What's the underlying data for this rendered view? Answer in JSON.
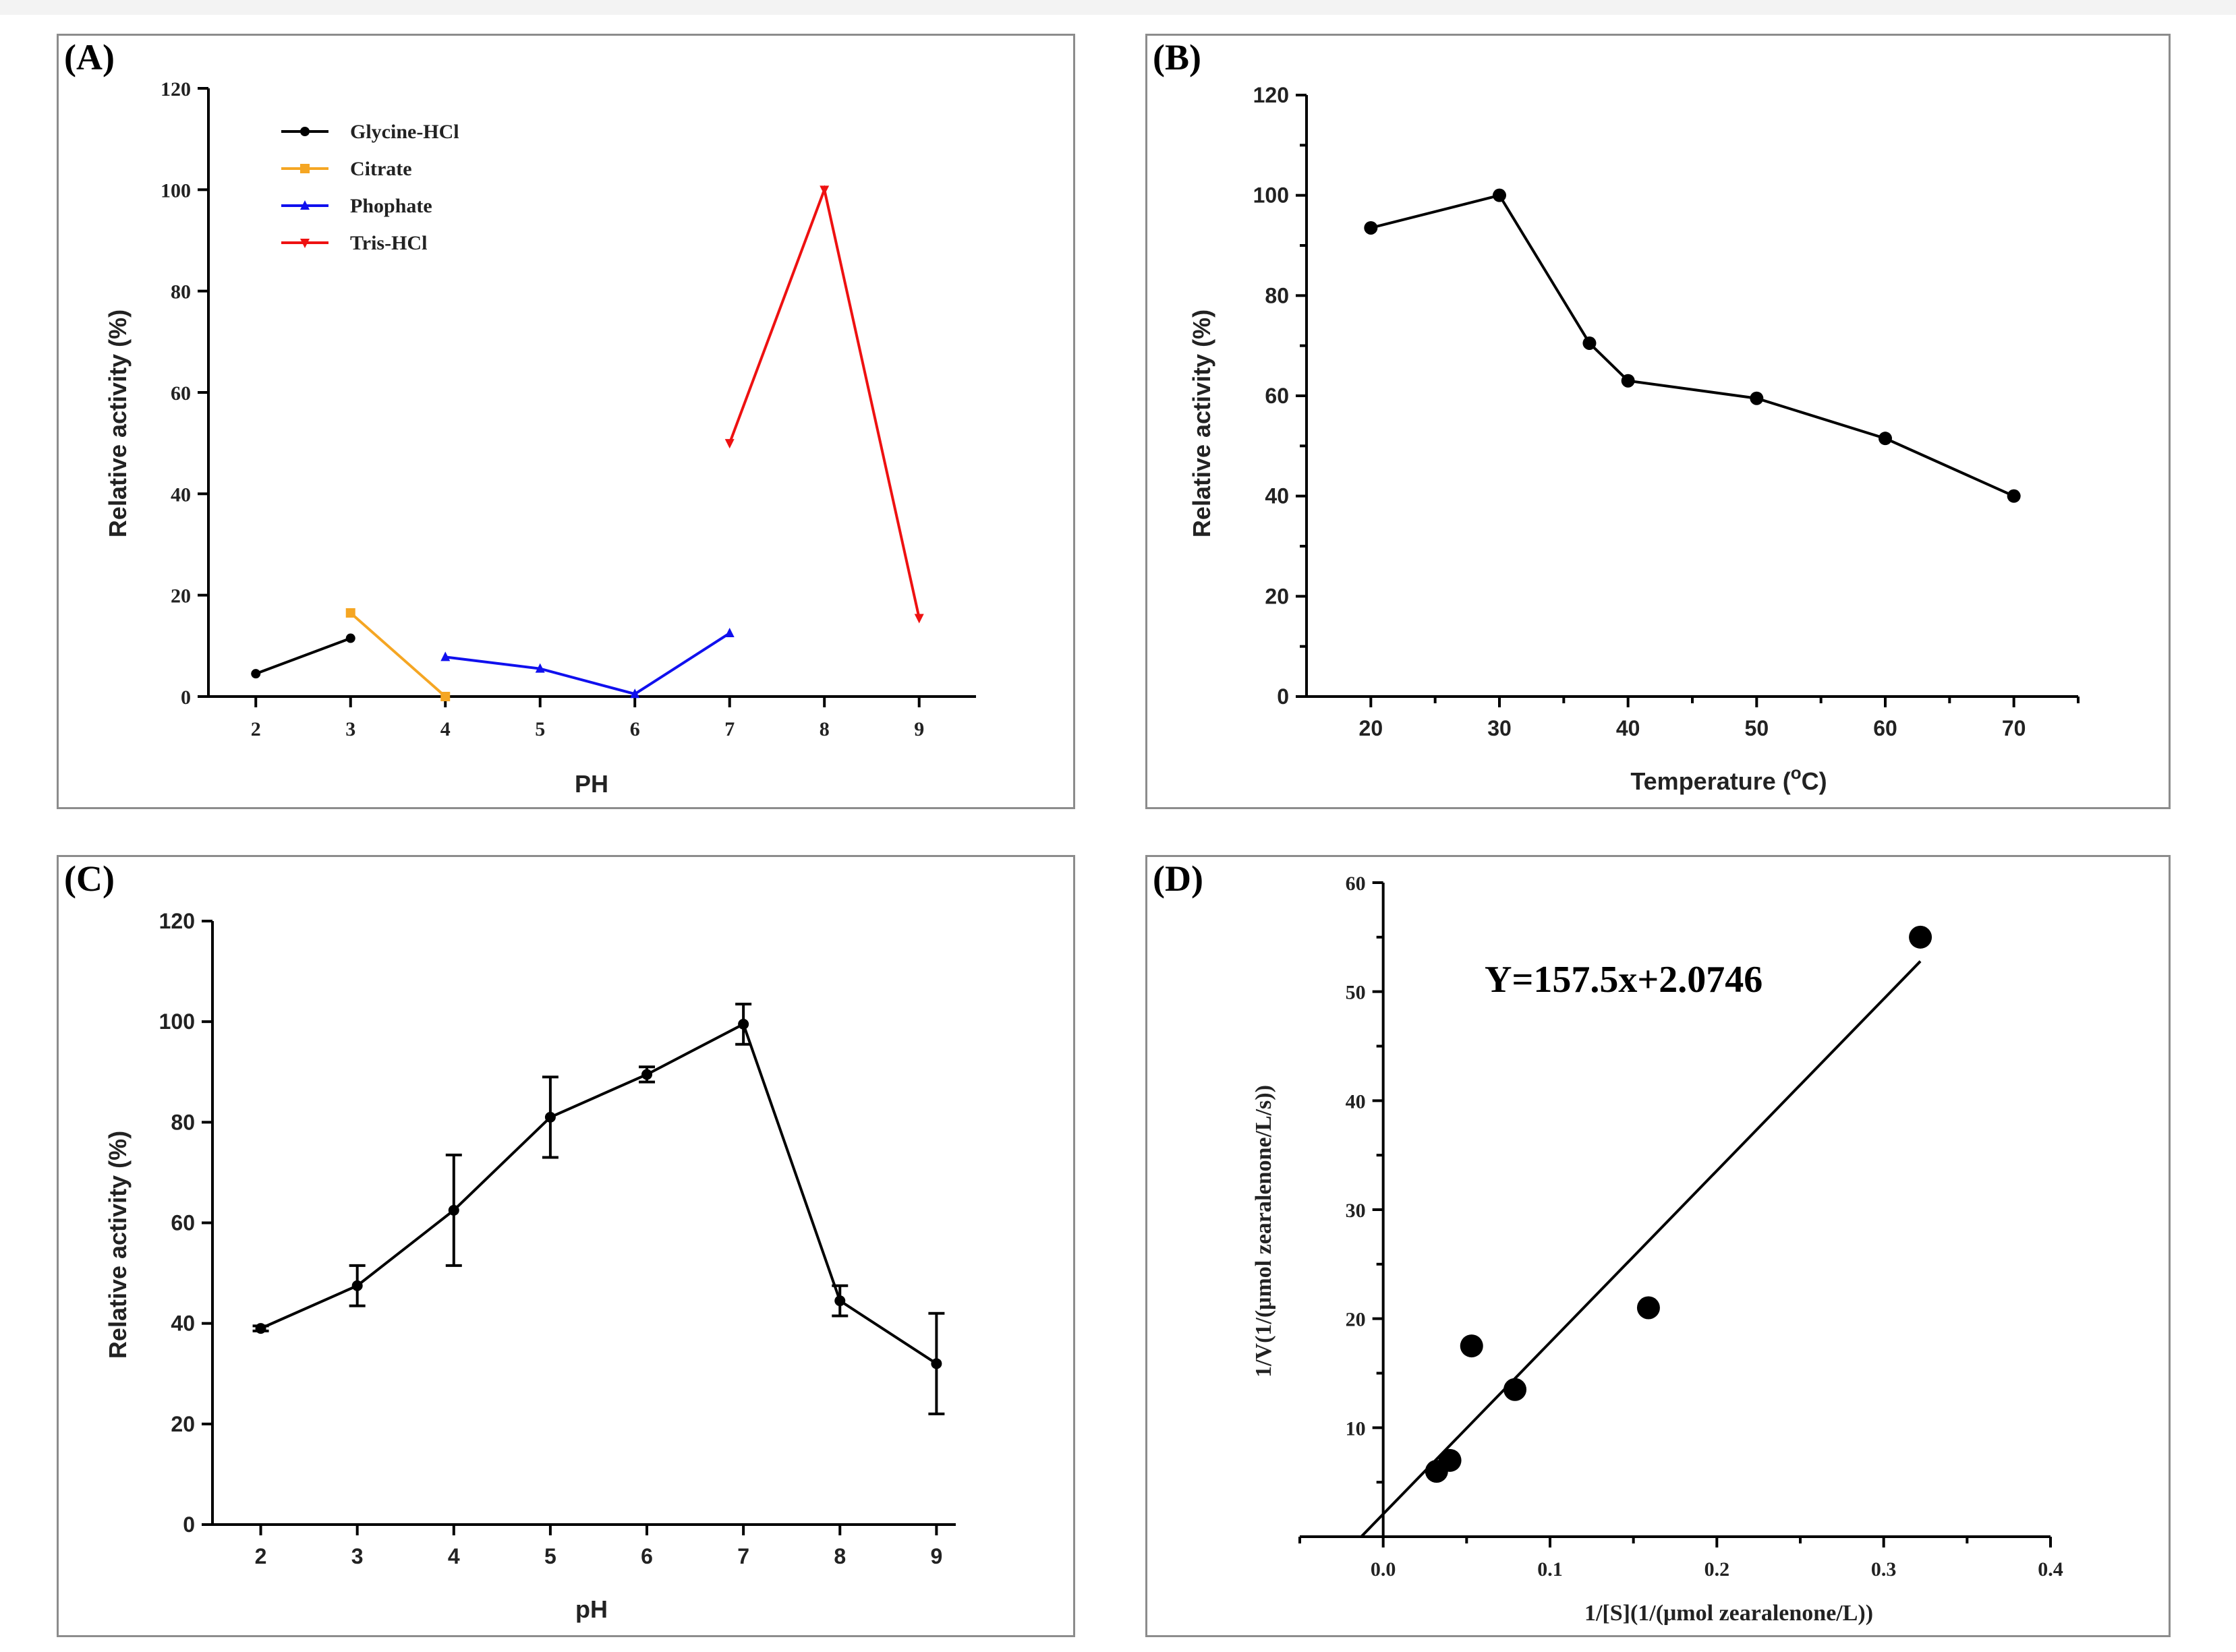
{
  "chart_data": [
    {
      "panel": "(A)",
      "type": "line",
      "xlabel": "PH",
      "ylabel": "Relative activity (%)",
      "xlim": [
        1.5,
        9.6
      ],
      "ylim": [
        0,
        120
      ],
      "xticks": [
        "2",
        "3",
        "4",
        "5",
        "6",
        "7",
        "8",
        "9"
      ],
      "yticks": [
        "0",
        "20",
        "40",
        "60",
        "80",
        "100",
        "120"
      ],
      "legend_position": "top-left",
      "series": [
        {
          "name": "Glycine-HCl",
          "color": "#000000",
          "marker": "circle",
          "x": [
            2,
            3
          ],
          "values": [
            4.5,
            11.5
          ]
        },
        {
          "name": "Citrate",
          "color": "#f5a623",
          "marker": "square",
          "x": [
            3,
            4
          ],
          "values": [
            16.5,
            0
          ]
        },
        {
          "name": "Phophate",
          "color": "#1010ee",
          "marker": "triangle-up",
          "x": [
            4,
            5,
            6,
            7
          ],
          "values": [
            7.8,
            5.5,
            0.5,
            12.5
          ]
        },
        {
          "name": "Tris-HCl",
          "color": "#ee1111",
          "marker": "triangle-down",
          "x": [
            7,
            8,
            9
          ],
          "values": [
            50,
            100,
            15.5
          ]
        }
      ]
    },
    {
      "panel": "(B)",
      "type": "line",
      "xlabel": "Temperature (°C)",
      "xlabel_main": "Temperature (",
      "xlabel_sup": "o",
      "xlabel_end": "C)",
      "ylabel": "Relative activity (%)",
      "xlim": [
        15,
        75
      ],
      "ylim": [
        0,
        120
      ],
      "xticks": [
        "20",
        "30",
        "40",
        "50",
        "60",
        "70"
      ],
      "yticks": [
        "0",
        "20",
        "40",
        "60",
        "80",
        "100",
        "120"
      ],
      "series": [
        {
          "name": "activity",
          "color": "#000000",
          "marker": "circle",
          "x": [
            20,
            30,
            37,
            40,
            50,
            60,
            70
          ],
          "values": [
            93.5,
            100,
            70.5,
            63,
            59.5,
            51.5,
            40
          ]
        }
      ]
    },
    {
      "panel": "(C)",
      "type": "line",
      "xlabel": "pH",
      "ylabel": "Relative activity (%)",
      "xlim": [
        1.5,
        9.2
      ],
      "ylim": [
        0,
        120
      ],
      "xticks": [
        "2",
        "3",
        "4",
        "5",
        "6",
        "7",
        "8",
        "9"
      ],
      "yticks": [
        "0",
        "20",
        "40",
        "60",
        "80",
        "100",
        "120"
      ],
      "series": [
        {
          "name": "activity",
          "color": "#000000",
          "marker": "circle",
          "x": [
            2,
            3,
            4,
            5,
            6,
            7,
            8,
            9
          ],
          "values": [
            39,
            47.5,
            62.5,
            81,
            89.5,
            99.5,
            44.5,
            32
          ],
          "errors": [
            0.5,
            4,
            11,
            8,
            1.5,
            4,
            3,
            10
          ]
        }
      ]
    },
    {
      "panel": "(D)",
      "type": "scatter",
      "xlabel": "1/[S](1/(μmol zearalenone/L))",
      "ylabel": "1/V(1/(μmol zearalenone/L/s))",
      "xlim": [
        -0.05,
        0.4
      ],
      "ylim": [
        0,
        60
      ],
      "xticks": [
        "0.0",
        "0.1",
        "0.2",
        "0.3",
        "0.4"
      ],
      "yticks": [
        "10",
        "20",
        "30",
        "40",
        "50",
        "60"
      ],
      "annotation": "Y=157.5x+2.0746",
      "fit": {
        "slope": 157.5,
        "intercept": 2.0746,
        "x_range": [
          -0.013,
          0.322
        ]
      },
      "points": {
        "x": [
          0.032,
          0.04,
          0.053,
          0.079,
          0.159,
          0.322
        ],
        "values": [
          6,
          7,
          17.5,
          13.5,
          21,
          55
        ]
      }
    }
  ]
}
